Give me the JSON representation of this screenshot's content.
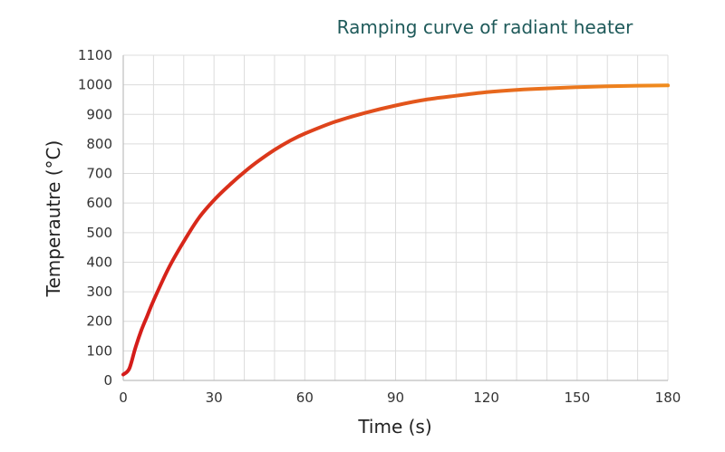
{
  "chart_data": {
    "type": "line",
    "title": "Ramping curve of radiant heater",
    "xlabel": "Time (s)",
    "ylabel": "Temperautre (°C)",
    "xlim": [
      0,
      180
    ],
    "ylim": [
      0,
      1100
    ],
    "x_ticks": [
      0,
      30,
      60,
      90,
      120,
      150,
      180
    ],
    "y_ticks": [
      0,
      100,
      200,
      300,
      400,
      500,
      600,
      700,
      800,
      900,
      1000,
      1100
    ],
    "grid": true,
    "colors": {
      "start": "#d41a1a",
      "end": "#f08c1e",
      "title": "#1f5a5a"
    },
    "series": [
      {
        "x": [
          0,
          2,
          4,
          6,
          8,
          10,
          15,
          20,
          25,
          30,
          35,
          40,
          45,
          50,
          55,
          60,
          70,
          80,
          90,
          100,
          110,
          120,
          130,
          140,
          150,
          160,
          170,
          180
        ],
        "y": [
          20,
          40,
          110,
          170,
          220,
          270,
          380,
          470,
          550,
          610,
          660,
          705,
          745,
          780,
          810,
          835,
          875,
          905,
          930,
          950,
          963,
          975,
          983,
          988,
          992,
          995,
          997,
          998
        ]
      }
    ]
  }
}
